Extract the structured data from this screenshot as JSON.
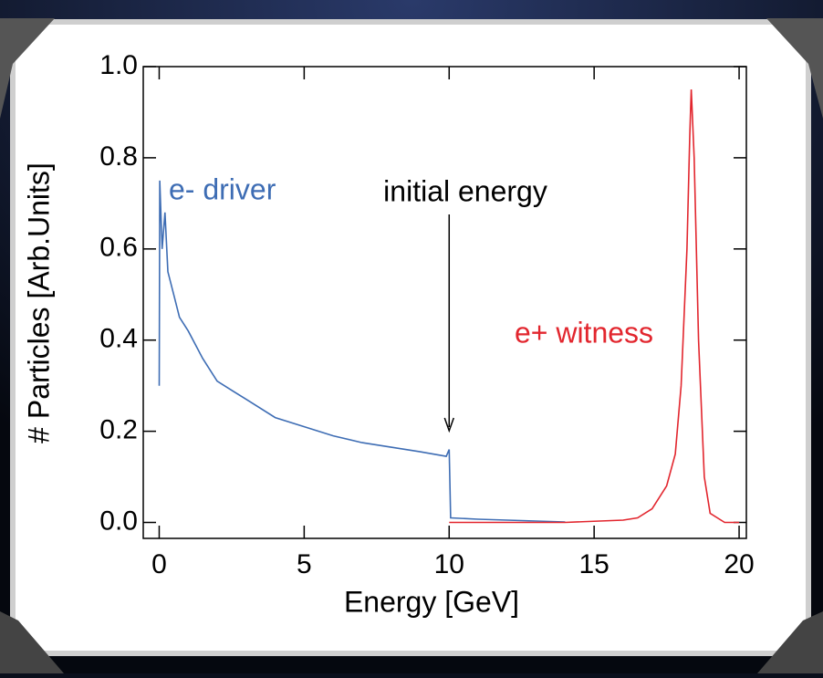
{
  "chart_data": {
    "type": "line",
    "xlabel": "Energy [GeV]",
    "ylabel": "# Particles [Arb.Units]",
    "xlim": [
      -0.55,
      20.25
    ],
    "ylim": [
      -0.035,
      1.0
    ],
    "xticks": [
      0,
      5,
      10,
      15,
      20
    ],
    "yticks": [
      {
        "value": 0,
        "label": "0.0"
      },
      {
        "value": 0.2,
        "label": "0.2"
      },
      {
        "value": 0.4,
        "label": "0.4"
      },
      {
        "value": 0.6,
        "label": "0.6"
      },
      {
        "value": 0.8,
        "label": "0.8"
      },
      {
        "value": 1,
        "label": "1.0"
      }
    ],
    "annotation": {
      "text": "initial energy",
      "x": 10
    },
    "series": [
      {
        "name": "e- driver",
        "color": "#3e6db4",
        "x": [
          0.0,
          0.02,
          0.1,
          0.2,
          0.3,
          0.5,
          0.7,
          1.0,
          1.5,
          2.0,
          2.5,
          3.0,
          4.0,
          5.0,
          6.0,
          7.0,
          8.0,
          9.0,
          9.9,
          10.0,
          10.05,
          11.0,
          12.0,
          13.0,
          14.0
        ],
        "values": [
          0.3,
          0.75,
          0.6,
          0.68,
          0.55,
          0.5,
          0.45,
          0.42,
          0.36,
          0.31,
          0.29,
          0.27,
          0.23,
          0.21,
          0.19,
          0.175,
          0.165,
          0.155,
          0.145,
          0.16,
          0.01,
          0.007,
          0.005,
          0.003,
          0.001
        ]
      },
      {
        "name": "e+ witness",
        "color": "#e2262e",
        "x": [
          10.0,
          14.0,
          16.0,
          16.5,
          17.0,
          17.5,
          17.8,
          18.0,
          18.2,
          18.3,
          18.35,
          18.45,
          18.6,
          18.8,
          19.0,
          19.5,
          20.0
        ],
        "values": [
          0.0,
          0.0,
          0.005,
          0.01,
          0.03,
          0.08,
          0.15,
          0.3,
          0.6,
          0.85,
          0.95,
          0.8,
          0.4,
          0.1,
          0.02,
          0.0,
          0.0
        ]
      }
    ]
  }
}
